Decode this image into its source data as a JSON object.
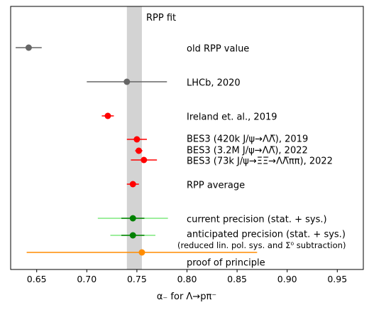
{
  "chart_data": {
    "type": "scatter",
    "title": "",
    "xlabel": "α₋ for Λ→pπ⁻",
    "ylabel": "",
    "xlim": [
      0.624,
      0.976
    ],
    "xticks": [
      "0.65",
      "0.70",
      "0.75",
      "0.80",
      "0.85",
      "0.90",
      "0.95"
    ],
    "xtick_values": [
      0.65,
      0.7,
      0.75,
      0.8,
      0.85,
      0.9,
      0.95
    ],
    "grid": false,
    "band": {
      "label": "RPP fit",
      "x_min": 0.74,
      "x_max": 0.755,
      "color": "#d3d3d3"
    },
    "series": [
      {
        "name": "old RPP value",
        "x": 0.642,
        "err": 0.013,
        "color": "#666666",
        "bar_color": "#666666"
      },
      {
        "name": "LHCb, 2020",
        "x": 0.74,
        "err": 0.04,
        "color": "#666666",
        "bar_color": "#666666"
      },
      {
        "name": "Ireland et. al., 2019",
        "x": 0.721,
        "err": 0.006,
        "color": "#ff0000",
        "bar_color": "#ff0000"
      },
      {
        "name": "BES3 (420k J/ψ→ΛΛ̅), 2019",
        "x": 0.75,
        "err": 0.01,
        "color": "#ff0000",
        "bar_color": "#ff0000"
      },
      {
        "name": "BES3 (3.2M J/ψ→ΛΛ̅), 2022",
        "x": 0.7519,
        "err": 0.0036,
        "color": "#ff0000",
        "bar_color": "#ff0000"
      },
      {
        "name": "BES3 (73k J/ψ→ΞΞ̅→ΛΛ̅ππ), 2022",
        "x": 0.757,
        "err": 0.013,
        "color": "#ff0000",
        "bar_color": "#ff0000"
      },
      {
        "name": "RPP average",
        "x": 0.746,
        "err": 0.006,
        "color": "#ff0000",
        "bar_color": "#ff0000"
      },
      {
        "name": "current precision (stat. + sys.)",
        "x": 0.746,
        "err": 0.0115,
        "err_outer": 0.035,
        "color": "#008000",
        "bar_color": "#008000",
        "outer_color": "#7fe87f"
      },
      {
        "name": "anticipated precision (stat. + sys.)",
        "subname": "(reduced lin. pol. sys. and Σ⁰ subtraction)",
        "x": 0.746,
        "err": 0.0115,
        "err_outer": 0.0225,
        "color": "#008000",
        "bar_color": "#008000",
        "outer_color": "#7fe87f"
      },
      {
        "name": "proof of principle",
        "x": 0.755,
        "err_lo": 0.115,
        "err_hi": 0.115,
        "color": "#ff8c00",
        "bar_color": "#ff8c00"
      }
    ]
  }
}
